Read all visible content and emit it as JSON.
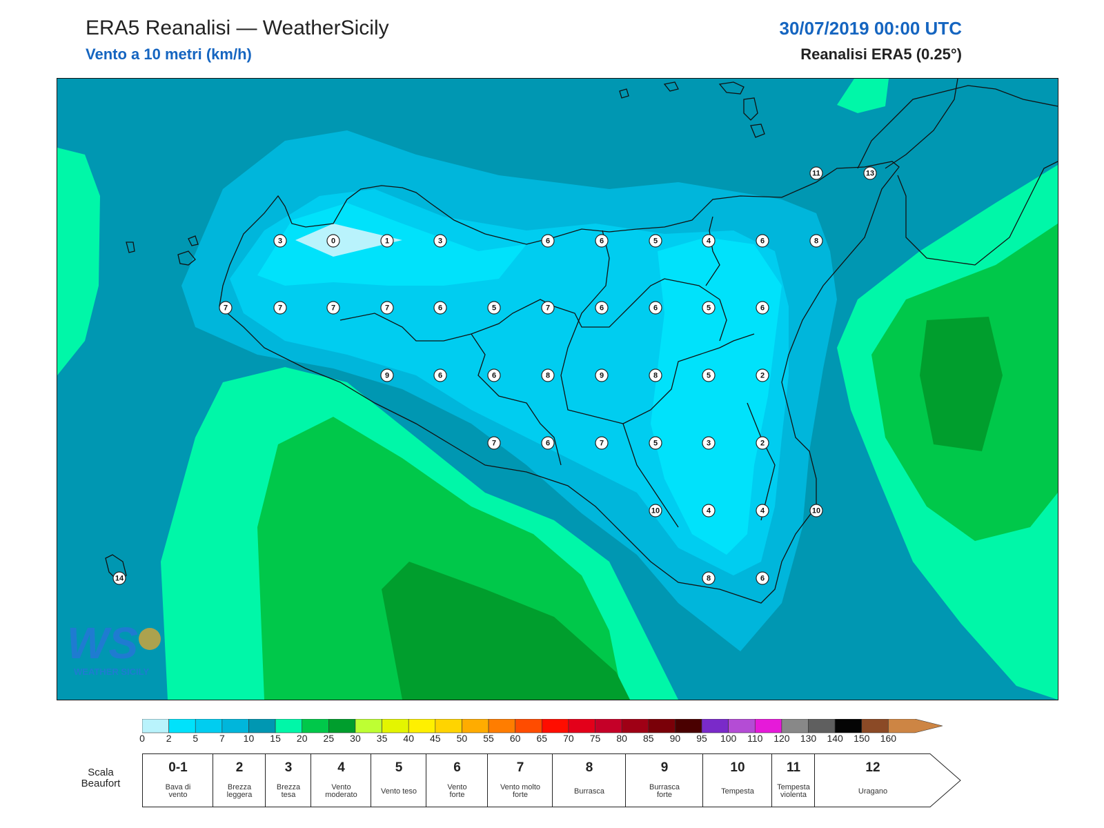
{
  "header": {
    "title": "ERA5 Reanalisi — WeatherSicily",
    "subtitle": "Vento a 10 metri (km/h)",
    "datetime": "30/07/2019 00:00 UTC",
    "source": "Reanalisi ERA5 (0.25°)"
  },
  "map": {
    "wind_labels": [
      {
        "v": 3
      },
      {
        "v": 0
      },
      {
        "v": 1
      },
      {
        "v": 3
      },
      {
        "v": 6
      },
      {
        "v": 6
      },
      {
        "v": 5
      },
      {
        "v": 4
      },
      {
        "v": 6
      },
      {
        "v": 8
      },
      {
        "v": 7
      },
      {
        "v": 7
      },
      {
        "v": 7
      },
      {
        "v": 7
      },
      {
        "v": 6
      },
      {
        "v": 5
      },
      {
        "v": 7
      },
      {
        "v": 6
      },
      {
        "v": 6
      },
      {
        "v": 5
      },
      {
        "v": 6
      },
      {
        "v": 9
      },
      {
        "v": 6
      },
      {
        "v": 6
      },
      {
        "v": 8
      },
      {
        "v": 9
      },
      {
        "v": 8
      },
      {
        "v": 5
      },
      {
        "v": 2
      },
      {
        "v": 7
      },
      {
        "v": 6
      },
      {
        "v": 7
      },
      {
        "v": 5
      },
      {
        "v": 3
      },
      {
        "v": 2
      },
      {
        "v": 10
      },
      {
        "v": 4
      },
      {
        "v": 4
      },
      {
        "v": 10
      },
      {
        "v": 8
      },
      {
        "v": 6
      },
      {
        "v": 11
      },
      {
        "v": 13
      },
      {
        "v": 14
      }
    ],
    "logo": {
      "letters": "WS",
      "text": "WEATHER SICILY"
    }
  },
  "colorbar": {
    "colors": [
      "#b9f3fc",
      "#00e2fb",
      "#00cdf0",
      "#00b6db",
      "#0097b2",
      "#00f7a8",
      "#00c84a",
      "#009e2d",
      "#beff33",
      "#e4f500",
      "#fff000",
      "#ffd400",
      "#ffac00",
      "#ff7d00",
      "#ff4c00",
      "#ff0d00",
      "#e3001a",
      "#c50028",
      "#9f0015",
      "#7a0008",
      "#4a0000",
      "#7a2ac9",
      "#b44cd5",
      "#e61ad9",
      "#888888",
      "#5f5f5f",
      "#050505",
      "#8b4a26",
      "#cd8544"
    ],
    "ticks": [
      "0",
      "2",
      "5",
      "7",
      "10",
      "15",
      "20",
      "25",
      "30",
      "35",
      "40",
      "45",
      "50",
      "55",
      "60",
      "65",
      "70",
      "75",
      "80",
      "85",
      "90",
      "95",
      "100",
      "110",
      "120",
      "130",
      "140",
      "150",
      "160"
    ]
  },
  "beaufort": {
    "label": "Scala Beaufort",
    "cells": [
      {
        "force": "0-1",
        "desc": [
          "Bava di",
          "vento"
        ]
      },
      {
        "force": "2",
        "desc": [
          "Brezza",
          "leggera"
        ]
      },
      {
        "force": "3",
        "desc": [
          "Brezza",
          "tesa"
        ]
      },
      {
        "force": "4",
        "desc": [
          "Vento",
          "moderato"
        ]
      },
      {
        "force": "5",
        "desc": [
          "Vento teso"
        ]
      },
      {
        "force": "6",
        "desc": [
          "Vento",
          "forte"
        ]
      },
      {
        "force": "7",
        "desc": [
          "Vento molto",
          "forte"
        ]
      },
      {
        "force": "8",
        "desc": [
          "Burrasca"
        ]
      },
      {
        "force": "9",
        "desc": [
          "Burrasca",
          "forte"
        ]
      },
      {
        "force": "10",
        "desc": [
          "Tempesta"
        ]
      },
      {
        "force": "11",
        "desc": [
          "Tempesta",
          "violenta"
        ]
      },
      {
        "force": "12",
        "desc": [
          "Uragano"
        ]
      }
    ]
  }
}
